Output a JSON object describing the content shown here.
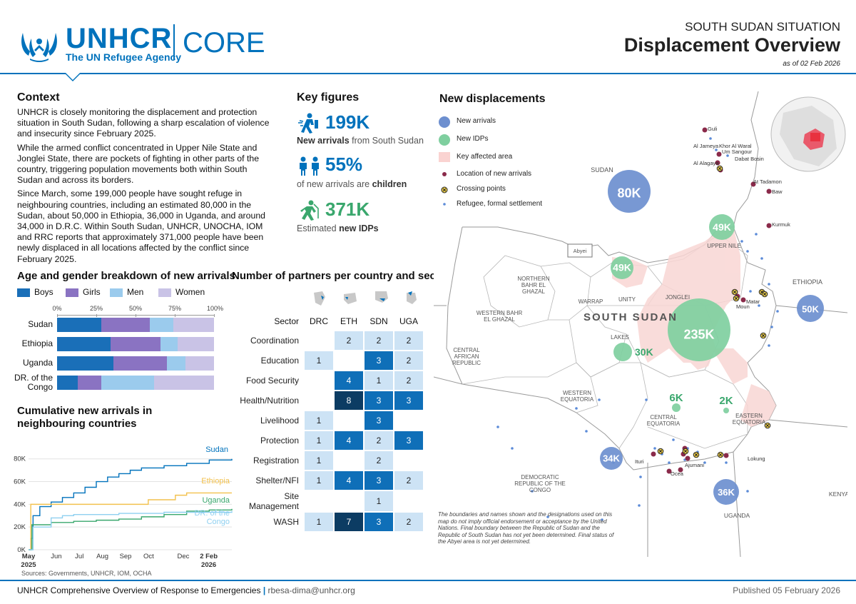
{
  "header": {
    "org_name": "UNHCR",
    "org_tagline": "The UN Refugee Agency",
    "product": "CORE",
    "situation": "SOUTH SUDAN SITUATION",
    "title": "Displacement Overview",
    "as_of": "as of 02 Feb 2026"
  },
  "context": {
    "title": "Context",
    "paragraphs": [
      "UNHCR is closely monitoring the displacement and protection situation in South Sudan, following a sharp escalation of violence and insecurity since February 2025.",
      "While the armed conflict concentrated in Upper Nile State and Jonglei State, there are pockets of fighting in other parts of the country, triggering population movements both within South Sudan and across its borders.",
      "Since March, some 199,000 people have sought refuge in neighbouring countries, including an estimated 80,000 in the Sudan, about 50,000 in Ethiopia, 36,000 in Uganda, and around 34,000 in D.R.C. Within  South Sudan, UNHCR, UNOCHA, IOM and RRC reports that approximately 371,000 people have been newly displaced in all locations affected by the conflict since February 2025."
    ]
  },
  "key_figures": {
    "title": "Key figures",
    "items": [
      {
        "value": "199K",
        "caption_bold": "New arrivals",
        "caption_rest": " from South Sudan",
        "icon": "walking-person-icon",
        "color": "#0072bc"
      },
      {
        "value": "55%",
        "caption_pre": "of new arrivals are ",
        "caption_bold": "children",
        "icon": "children-icon",
        "color": "#0072bc"
      },
      {
        "value": "371K",
        "caption_pre": "Estimated ",
        "caption_bold": "new IDPs",
        "icon": "running-person-icon",
        "color": "#3aa76d"
      }
    ]
  },
  "age_gender": {
    "title": "Age and gender breakdown of new arrivals",
    "legend": [
      {
        "label": "Boys",
        "color": "#1a6fb8"
      },
      {
        "label": "Girls",
        "color": "#8a73c2"
      },
      {
        "label": "Men",
        "color": "#9bcbed"
      },
      {
        "label": "Women",
        "color": "#c9c3e6"
      }
    ],
    "ticks": [
      "0%",
      "25%",
      "50%",
      "75%",
      "100%"
    ],
    "rows": [
      {
        "label": "Sudan",
        "values": [
          28,
          31,
          15,
          26
        ]
      },
      {
        "label": "Ethiopia",
        "values": [
          34,
          32,
          11,
          23
        ]
      },
      {
        "label": "Uganda",
        "values": [
          36,
          34,
          12,
          18
        ]
      },
      {
        "label": "DR. of the Congo",
        "values": [
          13,
          15,
          34,
          38
        ]
      }
    ]
  },
  "partners": {
    "title": "Number of partners per country and sector",
    "headers": [
      "Sector",
      "DRC",
      "ETH",
      "SDN",
      "UGA"
    ],
    "rows": [
      {
        "sector": "Coordination",
        "values": [
          "",
          "2",
          "2",
          "2"
        ]
      },
      {
        "sector": "Education",
        "values": [
          "1",
          "",
          "3",
          "2"
        ]
      },
      {
        "sector": "Food Security",
        "values": [
          "",
          "4",
          "1",
          "2"
        ]
      },
      {
        "sector": "Health/Nutrition",
        "values": [
          "",
          "8",
          "3",
          "3"
        ]
      },
      {
        "sector": "Livelihood",
        "values": [
          "1",
          "",
          "3",
          ""
        ]
      },
      {
        "sector": "Protection",
        "values": [
          "1",
          "4",
          "2",
          "3"
        ]
      },
      {
        "sector": "Registration",
        "values": [
          "1",
          "",
          "2",
          ""
        ]
      },
      {
        "sector": "Shelter/NFI",
        "values": [
          "1",
          "4",
          "3",
          "2"
        ]
      },
      {
        "sector": "Site Management",
        "values": [
          "",
          "",
          "1",
          ""
        ]
      },
      {
        "sector": "WASH",
        "values": [
          "1",
          "7",
          "3",
          "2"
        ]
      }
    ]
  },
  "chart_data": {
    "type": "line",
    "title": "Cumulative new arrivals in neighbouring countries",
    "x_ticks": [
      "May 2025",
      "Jun",
      "Jul",
      "Aug",
      "Sep",
      "Oct",
      "Dec",
      "2 Feb 2026"
    ],
    "y_ticks": [
      "0K",
      "20K",
      "40K",
      "60K",
      "80K"
    ],
    "ylim": [
      0,
      88000
    ],
    "xlim": [
      0,
      9
    ],
    "series": [
      {
        "name": "Sudan",
        "color": "#0072bc",
        "points": [
          [
            0,
            0
          ],
          [
            0.1,
            10000
          ],
          [
            0.2,
            30000
          ],
          [
            0.5,
            38000
          ],
          [
            1,
            42000
          ],
          [
            1.5,
            46000
          ],
          [
            2,
            50000
          ],
          [
            2.5,
            55000
          ],
          [
            3,
            60000
          ],
          [
            3.5,
            64000
          ],
          [
            4,
            67000
          ],
          [
            4.5,
            70000
          ],
          [
            5,
            72000
          ],
          [
            6,
            74000
          ],
          [
            7,
            76000
          ],
          [
            8,
            79000
          ],
          [
            9,
            80000
          ]
        ]
      },
      {
        "name": "Ethiopia",
        "color": "#f2c14e",
        "points": [
          [
            0,
            0
          ],
          [
            0.1,
            40000
          ],
          [
            1,
            40000
          ],
          [
            2,
            40000
          ],
          [
            4,
            40000
          ],
          [
            5,
            40000
          ],
          [
            5.3,
            44000
          ],
          [
            6.5,
            48000
          ],
          [
            7,
            50000
          ],
          [
            9,
            50000
          ]
        ]
      },
      {
        "name": "Uganda",
        "color": "#3aa76d",
        "points": [
          [
            0,
            0
          ],
          [
            0.15,
            22000
          ],
          [
            1,
            24000
          ],
          [
            2,
            25000
          ],
          [
            3,
            26000
          ],
          [
            4,
            27000
          ],
          [
            5,
            29000
          ],
          [
            6,
            31000
          ],
          [
            7,
            34000
          ],
          [
            8,
            35000
          ],
          [
            9,
            36000
          ]
        ]
      },
      {
        "name": "DR. of the Congo",
        "color": "#8fd0f0",
        "points": [
          [
            0,
            0
          ],
          [
            0.2,
            20000
          ],
          [
            1,
            28000
          ],
          [
            1.5,
            30000
          ],
          [
            2,
            31000
          ],
          [
            4,
            32000
          ],
          [
            6,
            33000
          ],
          [
            9,
            34000
          ]
        ]
      }
    ],
    "source": "Sources: Governments, UNHCR, IOM, OCHA"
  },
  "map": {
    "title": "New displacements",
    "legend": [
      {
        "label": "New arrivals",
        "kind": "blue-bubble"
      },
      {
        "label": "New IDPs",
        "kind": "green-bubble"
      },
      {
        "label": "Key affected area",
        "kind": "pink-area"
      },
      {
        "label": "Location of new arrivals",
        "kind": "maroon-dot"
      },
      {
        "label": "Crossing points",
        "kind": "crossing"
      },
      {
        "label": "Refugee, formal settlement",
        "kind": "small-dot"
      }
    ],
    "arrival_bubbles": [
      {
        "label": "80K",
        "country": "Sudan"
      },
      {
        "label": "50K",
        "country": "Ethiopia"
      },
      {
        "label": "34K",
        "country": "DRC"
      },
      {
        "label": "36K",
        "country": "Uganda"
      }
    ],
    "idp_bubbles": [
      {
        "label": "49K",
        "area": "Upper Nile"
      },
      {
        "label": "49K",
        "area": "Unity"
      },
      {
        "label": "235K",
        "area": "Jonglei"
      },
      {
        "label": "30K",
        "area": "Lakes"
      },
      {
        "label": "6K",
        "area": "Central Equatoria"
      },
      {
        "label": "2K",
        "area": "Eastern Equatoria"
      }
    ],
    "regions": {
      "sudan": "SUDAN",
      "ethiopia": "ETHIOPIA",
      "car": "CENTRAL AFRICAN REPUBLIC",
      "drc": "DEMOCRATIC REPUBLIC OF THE CONGO",
      "uganda": "UGANDA",
      "kenya": "KENYA",
      "south_sudan": "SOUTH SUDAN",
      "upper_nile": "UPPER NILE",
      "unity": "UNITY",
      "jonglei": "JONGLEI",
      "lakes": "LAKES",
      "warrap": "WARRAP",
      "nbeg": "NORTHERN BAHR EL GHAZAL",
      "wbeg": "WESTERN BAHR EL GHAZAL",
      "wes_eq": "WESTERN EQUATORIA",
      "cen_eq": "CENTRAL EQUATORIA",
      "east_eq": "EASTERN EQUATORIA",
      "abyei": "Abyei"
    },
    "places": [
      "Guli",
      "Al Jameya",
      "Khor Al Waral",
      "Um Sangour",
      "Dabat Bosin",
      "Al Alagaya",
      "At Tadamon",
      "Baw",
      "Kurmuk",
      "Moun",
      "Matar",
      "Lokung",
      "Ocea",
      "Ituri",
      "Ajumani"
    ],
    "disclaimer": "The boundaries and names shown and the designations used on this map do not imply official endorsement or acceptance by the United Nations. Final boundary between the Republic of Sudan and the Republic of South Sudan has not yet been determined. Final status of the Abyei area is not yet determined."
  },
  "footer": {
    "left_title": "UNHCR Comprehensive Overview of Response to Emergencies",
    "separator": "|",
    "email": "rbesa-dima@unhcr.org",
    "published": "Published 05 February 2026"
  }
}
